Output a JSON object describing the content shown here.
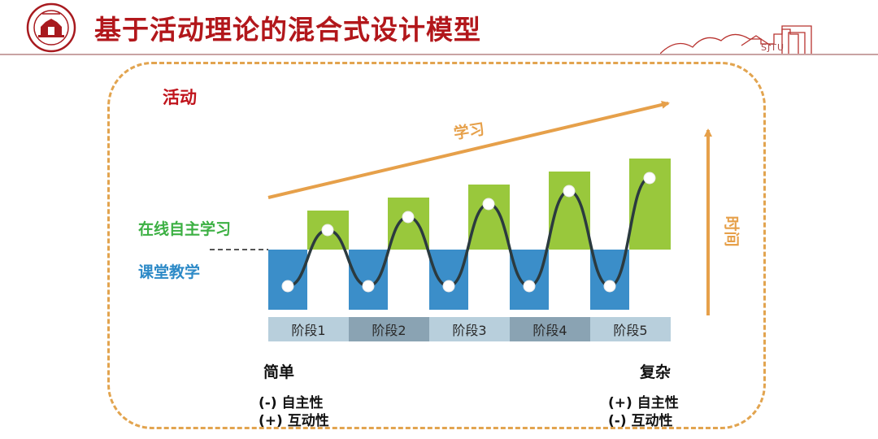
{
  "header": {
    "title": "基于活动理论的混合式设计模型",
    "skyline_text": "SJTU",
    "colors": {
      "title": "#b2171b",
      "rule": "#c9a3a3"
    }
  },
  "diagram": {
    "activity_label": "活动",
    "online_label": "在线自主学习",
    "classroom_label": "课堂教学",
    "learning_arrow_label": "学习",
    "time_arrow_label": "时间",
    "stages": [
      "阶段1",
      "阶段2",
      "阶段3",
      "阶段4",
      "阶段5"
    ],
    "online_heights": [
      1,
      2,
      3,
      4,
      5
    ],
    "colors": {
      "online": "#99c83c",
      "classroom": "#3b8ec9",
      "arrow": "#e6a04a",
      "curve": "#2b3a3f",
      "stage_light": "#b8cfdc",
      "stage_dark": "#8aa3b3",
      "frame": "#e2a44f",
      "activity": "#c0141c"
    },
    "simple": {
      "title": "简单",
      "line1": "(-) 自主性",
      "line2": "(+) 互动性"
    },
    "complex": {
      "title": "复杂",
      "line1": "(+) 自主性",
      "line2": "(-) 互动性"
    }
  }
}
